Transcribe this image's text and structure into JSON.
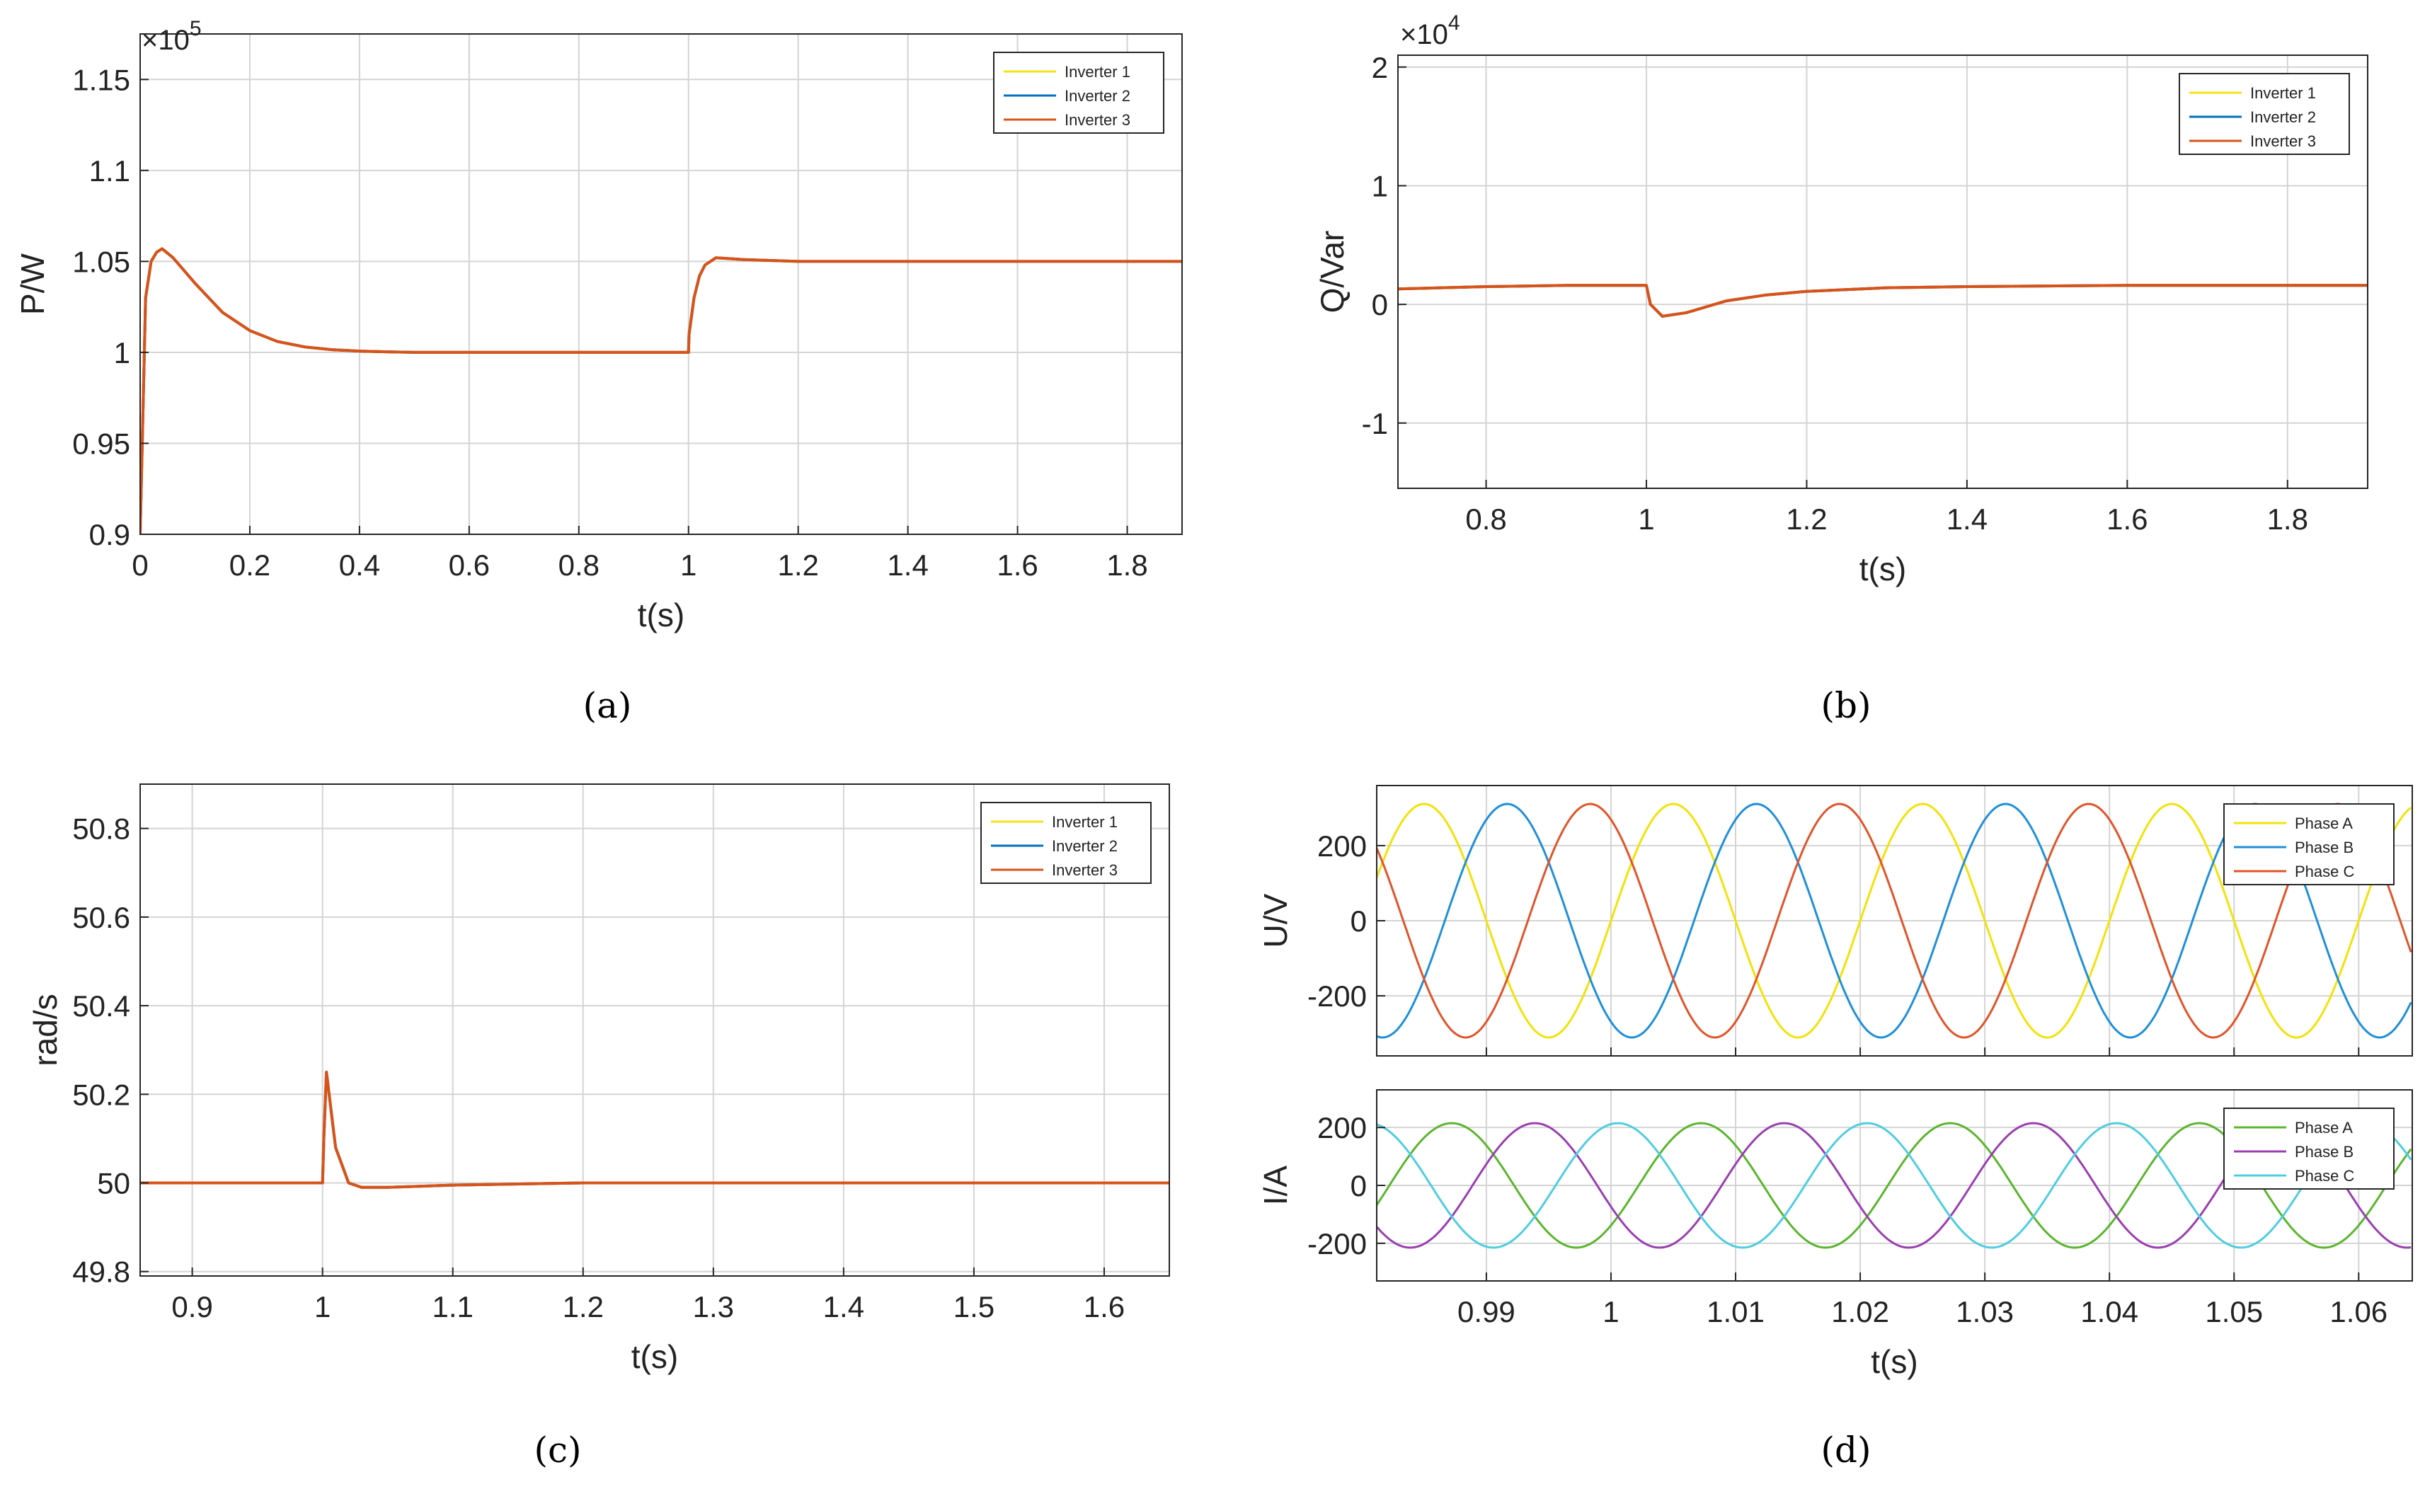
{
  "captions": [
    "(a)",
    "(b)",
    "(c)",
    "(d)"
  ],
  "colors": {
    "inverter_1": "#EDB120",
    "inverter_1_legend": "#F5E31B",
    "inverter_2": "#0072BD",
    "inverter_3": "#D95319",
    "phase_a_voltage": "#F2E20A",
    "phase_b_voltage": "#1F8FD9",
    "phase_c_voltage": "#E0542A",
    "phase_a_current": "#5BB52E",
    "phase_b_current": "#9A3FB0",
    "phase_c_current": "#4FCDE0"
  },
  "chart_data": [
    {
      "id": "a",
      "type": "line",
      "xlabel": "t(s)",
      "ylabel": "P/W",
      "exponent_label": "×10",
      "exponent_power": "5",
      "xlim": [
        0,
        1.9
      ],
      "ylim": [
        0.9,
        1.175
      ],
      "xticks": [
        0,
        0.2,
        0.4,
        0.6,
        0.8,
        1,
        1.2,
        1.4,
        1.6,
        1.8
      ],
      "xtick_labels": [
        "0",
        "0.2",
        "0.4",
        "0.6",
        "0.8",
        "1",
        "1.2",
        "1.4",
        "1.6",
        "1.8"
      ],
      "yticks": [
        0.9,
        0.95,
        1,
        1.05,
        1.1,
        1.15
      ],
      "ytick_labels": [
        "0.9",
        "0.95",
        "1",
        "1.05",
        "1.1",
        "1.15"
      ],
      "grid": true,
      "legend_position": "top-right",
      "series": [
        {
          "name": "Inverter 1",
          "x": [
            0,
            0.01,
            0.02,
            0.03,
            0.04,
            0.06,
            0.1,
            0.15,
            0.2,
            0.25,
            0.3,
            0.35,
            0.4,
            0.45,
            0.5,
            1.0,
            1.001,
            1.01,
            1.02,
            1.03,
            1.05,
            1.1,
            1.2,
            1.9
          ],
          "y": [
            0.9,
            1.03,
            1.05,
            1.055,
            1.057,
            1.052,
            1.038,
            1.022,
            1.012,
            1.006,
            1.003,
            1.0015,
            1.0007,
            1.0003,
            1.0,
            1.0,
            1.01,
            1.03,
            1.042,
            1.048,
            1.052,
            1.051,
            1.05,
            1.05
          ]
        },
        {
          "name": "Inverter 2",
          "x": [
            0,
            0.01,
            0.02,
            0.03,
            0.04,
            0.06,
            0.1,
            0.15,
            0.2,
            0.25,
            0.3,
            0.35,
            0.4,
            0.45,
            0.5,
            1.0,
            1.001,
            1.01,
            1.02,
            1.03,
            1.05,
            1.1,
            1.2,
            1.9
          ],
          "y": [
            0.9,
            1.03,
            1.05,
            1.055,
            1.057,
            1.052,
            1.038,
            1.022,
            1.012,
            1.006,
            1.003,
            1.0015,
            1.0007,
            1.0003,
            1.0,
            1.0,
            1.01,
            1.03,
            1.042,
            1.048,
            1.052,
            1.051,
            1.05,
            1.05
          ]
        },
        {
          "name": "Inverter 3",
          "x": [
            0,
            0.01,
            0.02,
            0.03,
            0.04,
            0.06,
            0.1,
            0.15,
            0.2,
            0.25,
            0.3,
            0.35,
            0.4,
            0.45,
            0.5,
            1.0,
            1.001,
            1.01,
            1.02,
            1.03,
            1.05,
            1.1,
            1.2,
            1.9
          ],
          "y": [
            0.9,
            1.03,
            1.05,
            1.055,
            1.057,
            1.052,
            1.038,
            1.022,
            1.012,
            1.006,
            1.003,
            1.0015,
            1.0007,
            1.0003,
            1.0,
            1.0,
            1.01,
            1.03,
            1.042,
            1.048,
            1.052,
            1.051,
            1.05,
            1.05
          ]
        }
      ]
    },
    {
      "id": "b",
      "type": "line",
      "xlabel": "t(s)",
      "ylabel": "Q/Var",
      "exponent_label": "×10",
      "exponent_power": "4",
      "xlim": [
        0.69,
        1.9
      ],
      "ylim": [
        -1.55,
        2.1
      ],
      "xticks": [
        0.8,
        1,
        1.2,
        1.4,
        1.6,
        1.8
      ],
      "xtick_labels": [
        "0.8",
        "1",
        "1.2",
        "1.4",
        "1.6",
        "1.8"
      ],
      "yticks": [
        -1,
        0,
        1,
        2
      ],
      "ytick_labels": [
        "-1",
        "0",
        "1",
        "2"
      ],
      "grid": true,
      "legend_position": "top-right",
      "series": [
        {
          "name": "Inverter 1",
          "x": [
            0.69,
            0.8,
            0.9,
            1.0,
            1.005,
            1.02,
            1.05,
            1.1,
            1.15,
            1.2,
            1.3,
            1.4,
            1.6,
            1.9
          ],
          "y": [
            0.13,
            0.15,
            0.16,
            0.16,
            0.0,
            -0.1,
            -0.07,
            0.03,
            0.08,
            0.11,
            0.14,
            0.15,
            0.16,
            0.16
          ]
        },
        {
          "name": "Inverter 2",
          "x": [
            0.69,
            0.8,
            0.9,
            1.0,
            1.005,
            1.02,
            1.05,
            1.1,
            1.15,
            1.2,
            1.3,
            1.4,
            1.6,
            1.9
          ],
          "y": [
            0.13,
            0.15,
            0.16,
            0.16,
            0.0,
            -0.1,
            -0.07,
            0.03,
            0.08,
            0.11,
            0.14,
            0.15,
            0.16,
            0.16
          ]
        },
        {
          "name": "Inverter 3",
          "x": [
            0.69,
            0.8,
            0.9,
            1.0,
            1.005,
            1.02,
            1.05,
            1.1,
            1.15,
            1.2,
            1.3,
            1.4,
            1.6,
            1.9
          ],
          "y": [
            0.13,
            0.15,
            0.16,
            0.16,
            0.0,
            -0.1,
            -0.07,
            0.03,
            0.08,
            0.11,
            0.14,
            0.15,
            0.16,
            0.16
          ]
        }
      ]
    },
    {
      "id": "c",
      "type": "line",
      "xlabel": "t(s)",
      "ylabel": "rad/s",
      "xlim": [
        0.86,
        1.65
      ],
      "ylim": [
        49.79,
        50.9
      ],
      "xticks": [
        0.9,
        1,
        1.1,
        1.2,
        1.3,
        1.4,
        1.5,
        1.6
      ],
      "xtick_labels": [
        "0.9",
        "1",
        "1.1",
        "1.2",
        "1.3",
        "1.4",
        "1.5",
        "1.6"
      ],
      "yticks": [
        49.8,
        50,
        50.2,
        50.4,
        50.6,
        50.8
      ],
      "ytick_labels": [
        "49.8",
        "50",
        "50.2",
        "50.4",
        "50.6",
        "50.8"
      ],
      "grid": true,
      "legend_position": "top-right",
      "series": [
        {
          "name": "Inverter 1",
          "x": [
            0.86,
            1.0,
            1.001,
            1.003,
            1.01,
            1.02,
            1.03,
            1.05,
            1.1,
            1.2,
            1.65
          ],
          "y": [
            50.0,
            50.0,
            50.1,
            50.25,
            50.08,
            50.0,
            49.99,
            49.99,
            49.995,
            50.0,
            50.0
          ]
        },
        {
          "name": "Inverter 2",
          "x": [
            0.86,
            1.0,
            1.001,
            1.003,
            1.01,
            1.02,
            1.03,
            1.05,
            1.1,
            1.2,
            1.65
          ],
          "y": [
            50.0,
            50.0,
            50.1,
            50.25,
            50.08,
            50.0,
            49.99,
            49.99,
            49.995,
            50.0,
            50.0
          ]
        },
        {
          "name": "Inverter 3",
          "x": [
            0.86,
            1.0,
            1.001,
            1.003,
            1.01,
            1.02,
            1.03,
            1.05,
            1.1,
            1.2,
            1.65
          ],
          "y": [
            50.0,
            50.0,
            50.1,
            50.25,
            50.08,
            50.0,
            49.99,
            49.99,
            49.995,
            50.0,
            50.0
          ]
        }
      ]
    },
    {
      "id": "d_voltage",
      "type": "line",
      "xlabel": "",
      "ylabel": "U/V",
      "xlim": [
        0.9812,
        1.0643
      ],
      "ylim": [
        -360,
        360
      ],
      "xticks": [
        0.99,
        1,
        1.01,
        1.02,
        1.03,
        1.04,
        1.05,
        1.06
      ],
      "xtick_labels": [],
      "yticks": [
        -200,
        0,
        200
      ],
      "ytick_labels": [
        "-200",
        "0",
        "200"
      ],
      "grid": true,
      "legend_position": "top-right",
      "waveform": {
        "amplitude": 311,
        "frequency_hz": 50,
        "sample_step": 0.0002
      },
      "series": [
        {
          "name": "Phase A",
          "phase_deg": 0
        },
        {
          "name": "Phase B",
          "phase_deg": -120
        },
        {
          "name": "Phase C",
          "phase_deg": 120
        }
      ]
    },
    {
      "id": "d_current",
      "type": "line",
      "xlabel": "t(s)",
      "ylabel": "I/A",
      "xlim": [
        0.9812,
        1.0643
      ],
      "ylim": [
        -330,
        330
      ],
      "xticks": [
        0.99,
        1,
        1.01,
        1.02,
        1.03,
        1.04,
        1.05,
        1.06
      ],
      "xtick_labels": [
        "0.99",
        "1",
        "1.01",
        "1.02",
        "1.03",
        "1.04",
        "1.05",
        "1.06"
      ],
      "yticks": [
        -200,
        0,
        200
      ],
      "ytick_labels": [
        "-200",
        "0",
        "200"
      ],
      "grid": true,
      "legend_position": "top-right",
      "waveform": {
        "amplitude": 215,
        "frequency_hz": 50,
        "sample_step": 0.0002
      },
      "series": [
        {
          "name": "Phase A",
          "phase_deg": -40
        },
        {
          "name": "Phase B",
          "phase_deg": -160
        },
        {
          "name": "Phase C",
          "phase_deg": 80
        }
      ]
    }
  ]
}
